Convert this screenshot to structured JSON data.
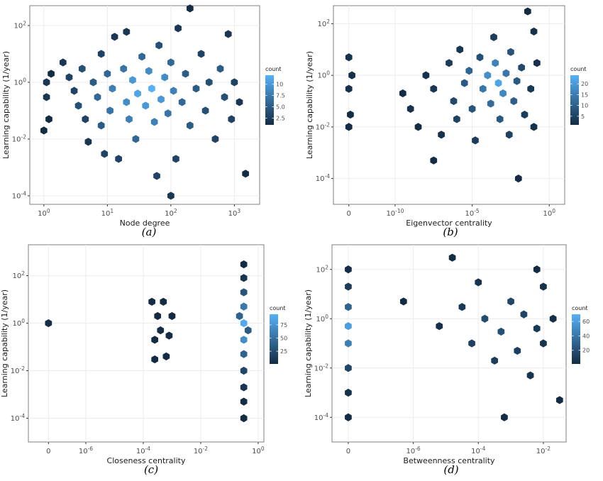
{
  "chart_data": [
    {
      "id": "a",
      "type": "hexbin",
      "caption": "(a)",
      "xlabel": "Node degree",
      "ylabel": "Learning capability (1/year)",
      "x_scale": "log10",
      "y_scale": "log10",
      "xlim": [
        0.6,
        2500
      ],
      "ylim": [
        5e-05,
        500
      ],
      "x_ticks": [
        {
          "v": 1,
          "label": "10^0"
        },
        {
          "v": 10,
          "label": "10^1"
        },
        {
          "v": 100,
          "label": "10^2"
        },
        {
          "v": 1000,
          "label": "10^3"
        }
      ],
      "y_ticks": [
        {
          "v": 0.0001,
          "label": "10^-4"
        },
        {
          "v": 0.01,
          "label": "10^-2"
        },
        {
          "v": 1,
          "label": "10^0"
        },
        {
          "v": 100,
          "label": "10^2"
        }
      ],
      "legend": {
        "title": "count",
        "min": 1,
        "max": 12,
        "ticks": [
          2.5,
          5.0,
          7.5,
          10
        ],
        "tick_labels": [
          "2.5",
          "5.0",
          "7.5",
          "10"
        ]
      },
      "hex_cells": [
        [
          1.1,
          1,
          2
        ],
        [
          1.1,
          0.3,
          2
        ],
        [
          1.2,
          0.05,
          1
        ],
        [
          1.0,
          0.02,
          1
        ],
        [
          1.3,
          2,
          1
        ],
        [
          2,
          5,
          2
        ],
        [
          2.5,
          1.5,
          3
        ],
        [
          3,
          0.5,
          3
        ],
        [
          3.5,
          0.15,
          4
        ],
        [
          4,
          3,
          4
        ],
        [
          4.5,
          0.05,
          3
        ],
        [
          5,
          0.008,
          2
        ],
        [
          6,
          1,
          5
        ],
        [
          7,
          0.3,
          6
        ],
        [
          8,
          10,
          3
        ],
        [
          8,
          0.03,
          5
        ],
        [
          9,
          0.003,
          3
        ],
        [
          10,
          2,
          6
        ],
        [
          11,
          0.1,
          7
        ],
        [
          12,
          0.6,
          8
        ],
        [
          13,
          40,
          2
        ],
        [
          15,
          0.002,
          3
        ],
        [
          18,
          3,
          7
        ],
        [
          20,
          0.2,
          9
        ],
        [
          22,
          0.05,
          8
        ],
        [
          25,
          1.2,
          10
        ],
        [
          28,
          0.01,
          6
        ],
        [
          30,
          0.4,
          11
        ],
        [
          35,
          8,
          6
        ],
        [
          40,
          0.15,
          10
        ],
        [
          45,
          2.5,
          9
        ],
        [
          50,
          0.6,
          12
        ],
        [
          55,
          0.04,
          8
        ],
        [
          60,
          0.0005,
          3
        ],
        [
          65,
          20,
          4
        ],
        [
          70,
          0.25,
          10
        ],
        [
          80,
          1.5,
          9
        ],
        [
          90,
          0.08,
          7
        ],
        [
          100,
          5,
          6
        ],
        [
          110,
          0.5,
          8
        ],
        [
          120,
          0.002,
          3
        ],
        [
          100,
          0.0001,
          2
        ],
        [
          130,
          80,
          2
        ],
        [
          150,
          0.2,
          6
        ],
        [
          170,
          2,
          5
        ],
        [
          200,
          0.03,
          5
        ],
        [
          250,
          0.6,
          5
        ],
        [
          300,
          10,
          3
        ],
        [
          350,
          0.1,
          4
        ],
        [
          400,
          1,
          4
        ],
        [
          500,
          0.01,
          3
        ],
        [
          600,
          3,
          5
        ],
        [
          700,
          0.3,
          4
        ],
        [
          800,
          50,
          2
        ],
        [
          900,
          0.05,
          3
        ],
        [
          1000,
          1,
          3
        ],
        [
          1200,
          0.2,
          2
        ],
        [
          1500,
          0.0006,
          1
        ],
        [
          200,
          400,
          1
        ],
        [
          20,
          60,
          2
        ]
      ]
    },
    {
      "id": "b",
      "type": "hexbin",
      "caption": "(b)",
      "xlabel": "Eigenvector centrality",
      "ylabel": "Learning capability (1/year)",
      "x_scale": "log10 with zero",
      "y_scale": "log10",
      "xlim": [
        -14,
        1
      ],
      "ylim": [
        1e-05,
        500
      ],
      "x_ticks": [
        {
          "v": -13,
          "label": "0"
        },
        {
          "v": -10,
          "label": "10^-10"
        },
        {
          "v": -5,
          "label": "10^-5"
        },
        {
          "v": 0,
          "label": "10^0"
        }
      ],
      "y_ticks": [
        {
          "v": 0.0001,
          "label": "10^-4"
        },
        {
          "v": 0.01,
          "label": "10^-2"
        },
        {
          "v": 1,
          "label": "10^0"
        },
        {
          "v": 100,
          "label": "10^2"
        }
      ],
      "legend": {
        "title": "count",
        "min": 1,
        "max": 24,
        "ticks": [
          5,
          10,
          15,
          20
        ],
        "tick_labels": [
          "5",
          "10",
          "15",
          "20"
        ]
      },
      "hex_cells": [
        [
          -13,
          5,
          2
        ],
        [
          -12.8,
          1,
          2
        ],
        [
          -13,
          0.3,
          2
        ],
        [
          -12.9,
          0.03,
          1
        ],
        [
          -13,
          0.01,
          1
        ],
        [
          -9.5,
          0.2,
          1
        ],
        [
          -9,
          0.05,
          2
        ],
        [
          -8.5,
          0.01,
          1
        ],
        [
          -8,
          1,
          2
        ],
        [
          -7.5,
          0.3,
          3
        ],
        [
          -7.5,
          0.0005,
          1
        ],
        [
          -7,
          0.005,
          2
        ],
        [
          -6.5,
          3,
          4
        ],
        [
          -6.2,
          0.1,
          6
        ],
        [
          -6,
          0.02,
          5
        ],
        [
          -5.8,
          10,
          3
        ],
        [
          -5.5,
          0.5,
          9
        ],
        [
          -5.2,
          1.5,
          11
        ],
        [
          -5,
          0.05,
          8
        ],
        [
          -4.8,
          0.003,
          4
        ],
        [
          -4.5,
          5,
          7
        ],
        [
          -4.3,
          0.3,
          14
        ],
        [
          -4,
          1,
          18
        ],
        [
          -3.8,
          0.08,
          12
        ],
        [
          -3.6,
          30,
          4
        ],
        [
          -3.5,
          3,
          16
        ],
        [
          -3.3,
          0.5,
          22
        ],
        [
          -3.2,
          0.02,
          9
        ],
        [
          -3,
          0.2,
          17
        ],
        [
          -2.8,
          1.2,
          14
        ],
        [
          -2.6,
          0.005,
          5
        ],
        [
          -2.5,
          8,
          8
        ],
        [
          -2.3,
          0.1,
          10
        ],
        [
          -2.1,
          0.6,
          9
        ],
        [
          -2,
          0.0001,
          1
        ],
        [
          -1.8,
          2,
          6
        ],
        [
          -1.6,
          0.03,
          4
        ],
        [
          -1.4,
          300,
          1
        ],
        [
          -1.2,
          0.3,
          3
        ],
        [
          -1,
          50,
          2
        ],
        [
          -1,
          0.01,
          2
        ],
        [
          -0.8,
          3,
          2
        ]
      ]
    },
    {
      "id": "c",
      "type": "hexbin",
      "caption": "(c)",
      "xlabel": "Closeness centrality",
      "ylabel": "Learning capability (1/year)",
      "x_scale": "log10 with zero",
      "y_scale": "log10",
      "xlim": [
        -8,
        0.2
      ],
      "ylim": [
        1e-05,
        2000
      ],
      "x_ticks": [
        {
          "v": -7.3,
          "label": "0"
        },
        {
          "v": -6,
          "label": "10^-6"
        },
        {
          "v": -4,
          "label": "10^-4"
        },
        {
          "v": -2,
          "label": "10^-2"
        },
        {
          "v": 0,
          "label": "10^0"
        }
      ],
      "y_ticks": [
        {
          "v": 0.0001,
          "label": "10^-4"
        },
        {
          "v": 0.01,
          "label": "10^-2"
        },
        {
          "v": 1,
          "label": "10^0"
        },
        {
          "v": 100,
          "label": "10^2"
        }
      ],
      "legend": {
        "title": "count",
        "min": 1,
        "max": 95,
        "ticks": [
          25,
          50,
          75
        ],
        "tick_labels": [
          "25",
          "50",
          "75"
        ]
      },
      "hex_cells": [
        [
          -7.3,
          1,
          2
        ],
        [
          -3.7,
          8,
          2
        ],
        [
          -3.5,
          2,
          1
        ],
        [
          -3.4,
          0.5,
          2
        ],
        [
          -3.6,
          0.2,
          1
        ],
        [
          -3.2,
          0.04,
          1
        ],
        [
          -3.3,
          8,
          1
        ],
        [
          -3.1,
          0.3,
          2
        ],
        [
          -3.6,
          0.03,
          1
        ],
        [
          -3.0,
          2,
          1
        ],
        [
          -0.5,
          300,
          1
        ],
        [
          -0.5,
          80,
          8
        ],
        [
          -0.5,
          20,
          30
        ],
        [
          -0.5,
          5,
          55
        ],
        [
          -0.5,
          1,
          90
        ],
        [
          -0.5,
          0.2,
          70
        ],
        [
          -0.5,
          0.05,
          40
        ],
        [
          -0.5,
          0.01,
          20
        ],
        [
          -0.5,
          0.002,
          8
        ],
        [
          -0.5,
          0.0005,
          3
        ],
        [
          -0.5,
          0.0001,
          1
        ],
        [
          -0.65,
          2,
          40
        ],
        [
          -0.35,
          0.5,
          35
        ]
      ]
    },
    {
      "id": "d",
      "type": "hexbin",
      "caption": "(d)",
      "xlabel": "Betweenness centrality",
      "ylabel": "Learning capability (1/year)",
      "x_scale": "log10 with zero",
      "y_scale": "log10",
      "xlim": [
        -8.5,
        -1.3
      ],
      "ylim": [
        1e-05,
        1000
      ],
      "x_ticks": [
        {
          "v": -8,
          "label": "0"
        },
        {
          "v": -6,
          "label": "10^-6"
        },
        {
          "v": -4,
          "label": "10^-4"
        },
        {
          "v": -2,
          "label": "10^-2"
        }
      ],
      "y_ticks": [
        {
          "v": 0.0001,
          "label": "10^-4"
        },
        {
          "v": 0.01,
          "label": "10^-2"
        },
        {
          "v": 1,
          "label": "10^0"
        },
        {
          "v": 100,
          "label": "10^2"
        }
      ],
      "legend": {
        "title": "count",
        "min": 1,
        "max": 70,
        "ticks": [
          20,
          40,
          60
        ],
        "tick_labels": [
          "20",
          "40",
          "60"
        ]
      },
      "hex_cells": [
        [
          -8,
          100,
          2
        ],
        [
          -8,
          20,
          10
        ],
        [
          -8,
          3,
          30
        ],
        [
          -8,
          0.5,
          60
        ],
        [
          -8,
          0.1,
          45
        ],
        [
          -8,
          0.01,
          15
        ],
        [
          -8,
          0.001,
          4
        ],
        [
          -8,
          0.0001,
          1
        ],
        [
          -6.3,
          5,
          1
        ],
        [
          -5.2,
          0.5,
          3
        ],
        [
          -4.8,
          300,
          1
        ],
        [
          -4.5,
          3,
          8
        ],
        [
          -4.2,
          0.1,
          12
        ],
        [
          -4,
          30,
          5
        ],
        [
          -3.8,
          1,
          18
        ],
        [
          -3.5,
          0.02,
          10
        ],
        [
          -3.3,
          0.3,
          20
        ],
        [
          -3,
          5,
          15
        ],
        [
          -2.8,
          0.05,
          12
        ],
        [
          -2.6,
          1.5,
          14
        ],
        [
          -2.4,
          0.005,
          5
        ],
        [
          -2.2,
          0.4,
          8
        ],
        [
          -2,
          20,
          4
        ],
        [
          -2,
          0.1,
          6
        ],
        [
          -1.7,
          1,
          3
        ],
        [
          -1.5,
          0.0005,
          1
        ],
        [
          -3.2,
          0.0001,
          1
        ],
        [
          -2.2,
          100,
          1
        ]
      ]
    }
  ]
}
